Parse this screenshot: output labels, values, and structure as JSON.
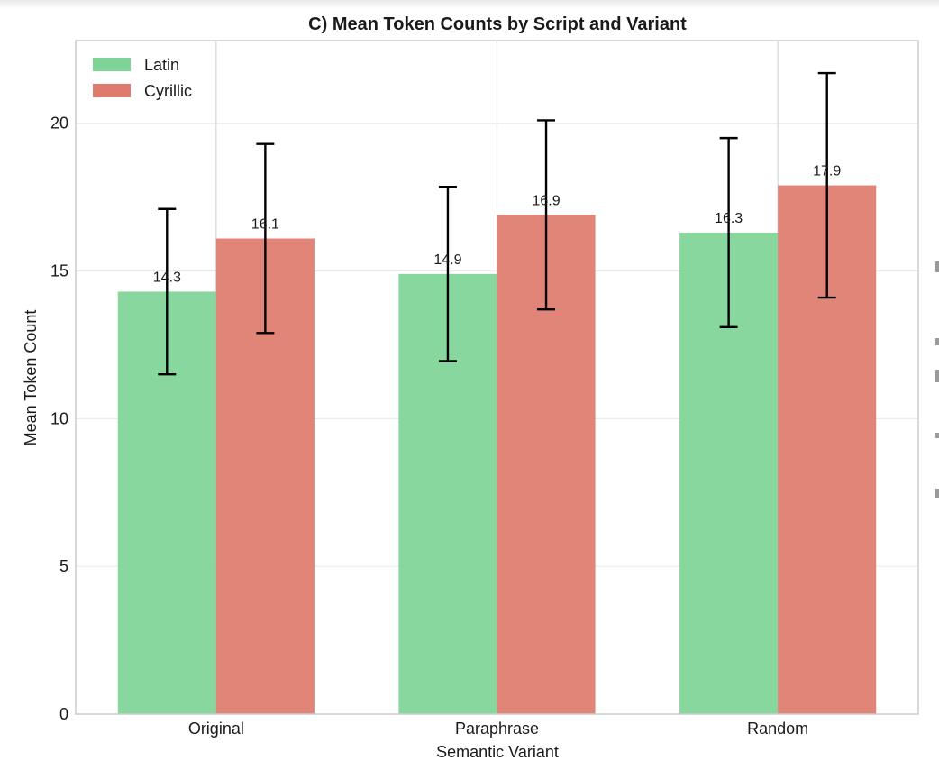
{
  "chart_data": {
    "type": "bar",
    "title": "C) Mean Token Counts by Script and Variant",
    "xlabel": "Semantic Variant",
    "ylabel": "Mean Token Count",
    "categories": [
      "Original",
      "Paraphrase",
      "Random"
    ],
    "series": [
      {
        "name": "Latin",
        "values": [
          14.3,
          14.9,
          16.3
        ],
        "errors": [
          2.8,
          2.95,
          3.2
        ],
        "color": "#7dd496",
        "label_text": [
          "14.3",
          "14.9",
          "16.3"
        ]
      },
      {
        "name": "Cyrillic",
        "values": [
          16.1,
          16.9,
          17.9
        ],
        "errors": [
          3.2,
          3.2,
          3.8
        ],
        "color": "#df7b6e",
        "label_text": [
          "16.1",
          "16.9",
          "17.9"
        ]
      }
    ],
    "ylim": [
      0,
      22.8
    ],
    "yticks": [
      0,
      5,
      10,
      15,
      20
    ],
    "grid": true,
    "legend_position": "top-left"
  }
}
